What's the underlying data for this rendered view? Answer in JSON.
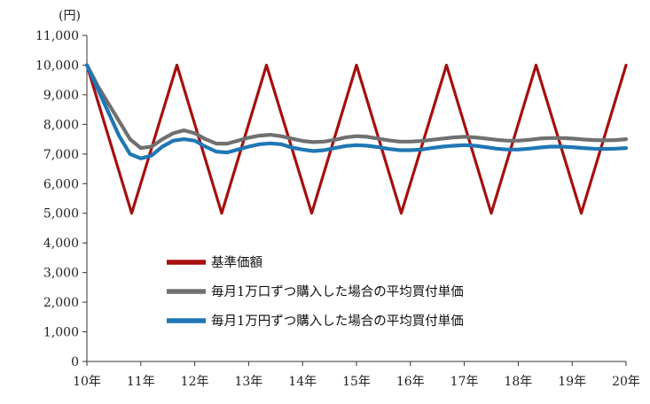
{
  "chart_data": {
    "type": "line",
    "unit_label": "(円)",
    "x_ticks": [
      "10年",
      "11年",
      "12年",
      "13年",
      "14年",
      "15年",
      "16年",
      "17年",
      "18年",
      "19年",
      "20年"
    ],
    "xlim": [
      10,
      20
    ],
    "ylim": [
      0,
      11000
    ],
    "y_ticks": [
      "0",
      "1,000",
      "2,000",
      "3,000",
      "4,000",
      "5,000",
      "6,000",
      "7,000",
      "8,000",
      "9,000",
      "10,000",
      "11,000"
    ],
    "y_tick_values": [
      0,
      1000,
      2000,
      3000,
      4000,
      5000,
      6000,
      7000,
      8000,
      9000,
      10000,
      11000
    ],
    "grid": false,
    "legend_position": "center-bottom",
    "series": [
      {
        "name": "基準価額",
        "color": "#a50f0f",
        "x": [
          10,
          10.83,
          11.67,
          12.5,
          13.33,
          14.17,
          15,
          15.83,
          16.67,
          17.5,
          18.33,
          19.17,
          20
        ],
        "y": [
          10000,
          5000,
          10000,
          5000,
          10000,
          5000,
          10000,
          5000,
          10000,
          5000,
          10000,
          5000,
          10000
        ]
      },
      {
        "name": "毎月1万口ずつ購入した場合の平均買付単価",
        "color": "#707070",
        "x": [
          10,
          10.2,
          10.4,
          10.6,
          10.8,
          11.0,
          11.2,
          11.4,
          11.6,
          11.8,
          12.0,
          12.2,
          12.4,
          12.6,
          12.8,
          13.0,
          13.2,
          13.4,
          13.6,
          13.8,
          14.0,
          14.2,
          14.4,
          14.6,
          14.8,
          15.0,
          15.2,
          15.4,
          15.6,
          15.8,
          16.0,
          16.2,
          16.4,
          16.6,
          16.8,
          17.0,
          17.2,
          17.4,
          17.6,
          17.8,
          18.0,
          18.2,
          18.4,
          18.6,
          18.8,
          19.0,
          19.2,
          19.4,
          19.6,
          19.8,
          20.0
        ],
        "y": [
          10000,
          9300,
          8700,
          8100,
          7500,
          7200,
          7250,
          7500,
          7700,
          7800,
          7700,
          7500,
          7350,
          7350,
          7450,
          7550,
          7620,
          7650,
          7600,
          7520,
          7440,
          7400,
          7420,
          7480,
          7560,
          7600,
          7580,
          7520,
          7460,
          7420,
          7420,
          7440,
          7480,
          7520,
          7560,
          7580,
          7560,
          7520,
          7480,
          7450,
          7450,
          7480,
          7520,
          7540,
          7540,
          7520,
          7490,
          7470,
          7460,
          7470,
          7500
        ]
      },
      {
        "name": "毎月1万円ずつ購入した場合の平均買付単価",
        "color": "#1f77b4",
        "x": [
          10,
          10.2,
          10.4,
          10.6,
          10.8,
          11.0,
          11.2,
          11.4,
          11.6,
          11.8,
          12.0,
          12.2,
          12.4,
          12.6,
          12.8,
          13.0,
          13.2,
          13.4,
          13.6,
          13.8,
          14.0,
          14.2,
          14.4,
          14.6,
          14.8,
          15.0,
          15.2,
          15.4,
          15.6,
          15.8,
          16.0,
          16.2,
          16.4,
          16.6,
          16.8,
          17.0,
          17.2,
          17.4,
          17.6,
          17.8,
          18.0,
          18.2,
          18.4,
          18.6,
          18.8,
          19.0,
          19.2,
          19.4,
          19.6,
          19.8,
          20.0
        ],
        "y": [
          10000,
          9200,
          8400,
          7600,
          7000,
          6850,
          6950,
          7250,
          7450,
          7500,
          7450,
          7250,
          7080,
          7050,
          7150,
          7250,
          7330,
          7360,
          7330,
          7220,
          7150,
          7100,
          7130,
          7200,
          7270,
          7300,
          7280,
          7230,
          7170,
          7130,
          7130,
          7150,
          7200,
          7250,
          7280,
          7300,
          7280,
          7230,
          7180,
          7150,
          7150,
          7180,
          7220,
          7250,
          7250,
          7230,
          7200,
          7180,
          7170,
          7180,
          7200
        ]
      }
    ]
  }
}
